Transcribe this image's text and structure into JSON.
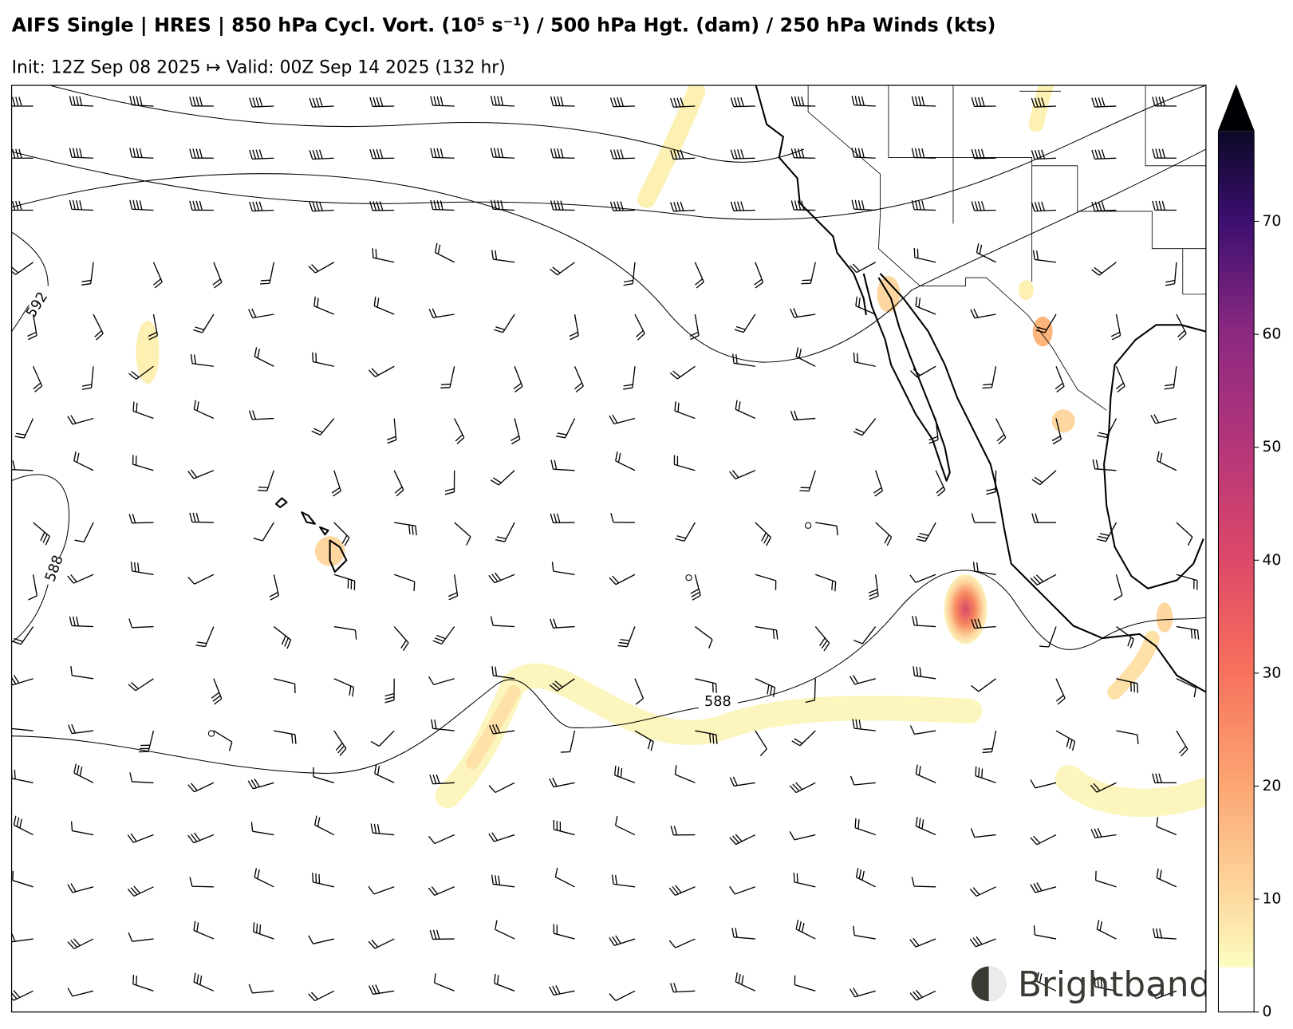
{
  "header": {
    "title": "AIFS Single | HRES | 850 hPa Cycl. Vort. (10⁵ s⁻¹) / 500 hPa Hgt. (dam) / 250 hPa Winds (kts)",
    "subtitle": "Init: 12Z Sep 08 2025 ↦ Valid: 00Z Sep 14 2025 (132 hr)"
  },
  "map": {
    "contour_labels": [
      "592",
      "588",
      "588"
    ]
  },
  "colorbar": {
    "lim": [
      0,
      78
    ],
    "ticks": [
      0,
      10,
      20,
      30,
      40,
      50,
      60,
      70
    ],
    "extend": "max"
  },
  "brand": "Brightband"
}
